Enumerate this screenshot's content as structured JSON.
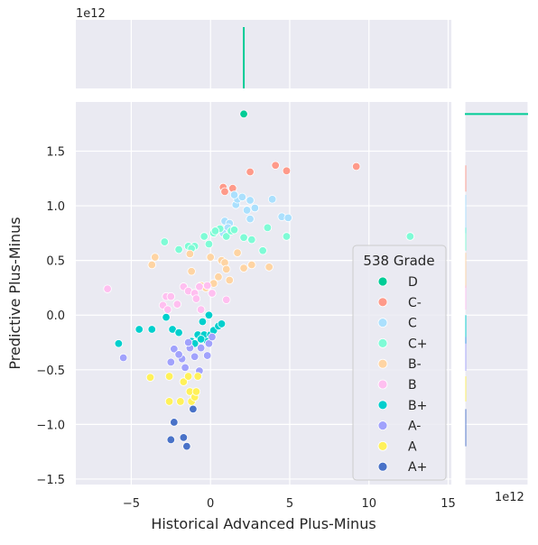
{
  "chart_data": {
    "type": "scatter",
    "xlabel": "Historical Advanced Plus-Minus",
    "ylabel": "Predictive Plus-Minus",
    "xlim": [
      -8.5,
      15.2
    ],
    "ylim": [
      -1.55,
      1.95
    ],
    "xticks": [
      -5,
      0,
      5,
      10,
      15
    ],
    "yticks": [
      -1.5,
      -1.0,
      -0.5,
      0.0,
      0.5,
      1.0,
      1.5
    ],
    "ytick_labels": [
      "−1.5",
      "−1.0",
      "−0.5",
      "0.0",
      "0.5",
      "1.0",
      "1.5"
    ],
    "xtick_labels": [
      "−5",
      "0",
      "5",
      "10",
      "15"
    ],
    "top_marginal_offset": "1e12",
    "right_marginal_offset": "1e12",
    "grid": true,
    "legend": {
      "title": "538 Grade",
      "placement": "center-right"
    },
    "background": "#eaeaf2",
    "series": [
      {
        "name": "D",
        "color": "#00cc96",
        "points": [
          [
            2.1,
            1.84
          ]
        ]
      },
      {
        "name": "C-",
        "color": "#fe9a8a",
        "points": [
          [
            0.8,
            1.17
          ],
          [
            1.4,
            1.16
          ],
          [
            2.5,
            1.31
          ],
          [
            4.1,
            1.37
          ],
          [
            4.8,
            1.32
          ],
          [
            9.2,
            1.36
          ],
          [
            0.9,
            1.13
          ]
        ]
      },
      {
        "name": "C",
        "color": "#abe0fd",
        "points": [
          [
            0.9,
            0.86
          ],
          [
            1.2,
            0.84
          ],
          [
            1.6,
            1.01
          ],
          [
            1.7,
            1.06
          ],
          [
            2.3,
            0.96
          ],
          [
            2.5,
            1.05
          ],
          [
            2.8,
            0.98
          ],
          [
            3.9,
            1.06
          ],
          [
            4.5,
            0.9
          ],
          [
            4.9,
            0.89
          ],
          [
            2.5,
            0.88
          ],
          [
            1.1,
            0.8
          ],
          [
            0.8,
            0.75
          ],
          [
            2.0,
            1.08
          ],
          [
            1.5,
            1.1
          ]
        ]
      },
      {
        "name": "C+",
        "color": "#7ffbd6",
        "points": [
          [
            -2.9,
            0.67
          ],
          [
            -2.0,
            0.6
          ],
          [
            -1.4,
            0.63
          ],
          [
            -1.0,
            0.63
          ],
          [
            -0.4,
            0.72
          ],
          [
            -0.1,
            0.65
          ],
          [
            0.2,
            0.75
          ],
          [
            0.6,
            0.79
          ],
          [
            1.0,
            0.72
          ],
          [
            1.3,
            0.77
          ],
          [
            1.5,
            0.78
          ],
          [
            2.1,
            0.71
          ],
          [
            2.6,
            0.69
          ],
          [
            3.3,
            0.59
          ],
          [
            3.6,
            0.8
          ],
          [
            4.8,
            0.72
          ],
          [
            12.6,
            0.72
          ],
          [
            -1.2,
            0.61
          ],
          [
            0.3,
            0.77
          ]
        ]
      },
      {
        "name": "B-",
        "color": "#fed4a3",
        "points": [
          [
            -3.7,
            0.46
          ],
          [
            -3.5,
            0.53
          ],
          [
            -1.3,
            0.56
          ],
          [
            -1.2,
            0.4
          ],
          [
            0.0,
            0.53
          ],
          [
            0.7,
            0.5
          ],
          [
            0.9,
            0.48
          ],
          [
            1.0,
            0.42
          ],
          [
            1.2,
            0.32
          ],
          [
            1.7,
            0.57
          ],
          [
            2.1,
            0.43
          ],
          [
            2.6,
            0.46
          ],
          [
            3.7,
            0.44
          ],
          [
            0.2,
            0.29
          ],
          [
            -0.6,
            0.27
          ],
          [
            0.5,
            0.35
          ],
          [
            -0.3,
            0.25
          ]
        ]
      },
      {
        "name": "B",
        "color": "#ffbff0",
        "points": [
          [
            -6.5,
            0.24
          ],
          [
            -2.8,
            0.17
          ],
          [
            -2.5,
            0.17
          ],
          [
            -2.1,
            0.1
          ],
          [
            -1.7,
            0.26
          ],
          [
            -1.4,
            0.22
          ],
          [
            -1.0,
            0.2
          ],
          [
            -0.7,
            0.26
          ],
          [
            -0.2,
            0.27
          ],
          [
            0.1,
            0.2
          ],
          [
            -0.6,
            0.05
          ],
          [
            1.0,
            0.14
          ],
          [
            -3.0,
            0.09
          ],
          [
            -2.7,
            0.05
          ],
          [
            -0.9,
            0.15
          ]
        ]
      },
      {
        "name": "B+",
        "color": "#00cfcd",
        "points": [
          [
            -5.8,
            -0.26
          ],
          [
            -4.5,
            -0.13
          ],
          [
            -3.7,
            -0.13
          ],
          [
            -2.8,
            -0.02
          ],
          [
            -2.4,
            -0.13
          ],
          [
            -2.0,
            -0.16
          ],
          [
            -1.2,
            -0.24
          ],
          [
            -1.0,
            -0.26
          ],
          [
            -0.8,
            -0.18
          ],
          [
            -0.5,
            -0.06
          ],
          [
            -0.4,
            -0.18
          ],
          [
            -0.1,
            0.0
          ],
          [
            0.0,
            -0.18
          ],
          [
            0.2,
            -0.14
          ],
          [
            0.5,
            -0.1
          ],
          [
            0.7,
            -0.08
          ],
          [
            -0.2,
            -0.24
          ],
          [
            -0.6,
            -0.22
          ]
        ]
      },
      {
        "name": "A-",
        "color": "#a1a2fc",
        "points": [
          [
            -5.5,
            -0.39
          ],
          [
            -2.5,
            -0.43
          ],
          [
            -2.3,
            -0.31
          ],
          [
            -1.8,
            -0.4
          ],
          [
            -1.6,
            -0.48
          ],
          [
            -1.3,
            -0.3
          ],
          [
            -1.0,
            -0.38
          ],
          [
            -0.7,
            -0.51
          ],
          [
            -0.6,
            -0.3
          ],
          [
            -0.2,
            -0.37
          ],
          [
            -0.1,
            -0.26
          ],
          [
            0.1,
            -0.2
          ],
          [
            -1.4,
            -0.25
          ],
          [
            -2.0,
            -0.36
          ]
        ]
      },
      {
        "name": "A",
        "color": "#fff15a",
        "points": [
          [
            -3.8,
            -0.57
          ],
          [
            -2.6,
            -0.56
          ],
          [
            -2.6,
            -0.79
          ],
          [
            -1.9,
            -0.79
          ],
          [
            -1.7,
            -0.61
          ],
          [
            -1.3,
            -0.7
          ],
          [
            -1.2,
            -0.79
          ],
          [
            -1.0,
            -0.75
          ],
          [
            -0.9,
            -0.7
          ],
          [
            -0.8,
            -0.56
          ],
          [
            -1.4,
            -0.56
          ]
        ]
      },
      {
        "name": "A+",
        "color": "#4972c8",
        "points": [
          [
            -2.3,
            -0.98
          ],
          [
            -2.5,
            -1.14
          ],
          [
            -1.7,
            -1.12
          ],
          [
            -1.5,
            -1.2
          ],
          [
            -1.1,
            -0.86
          ]
        ]
      }
    ]
  }
}
